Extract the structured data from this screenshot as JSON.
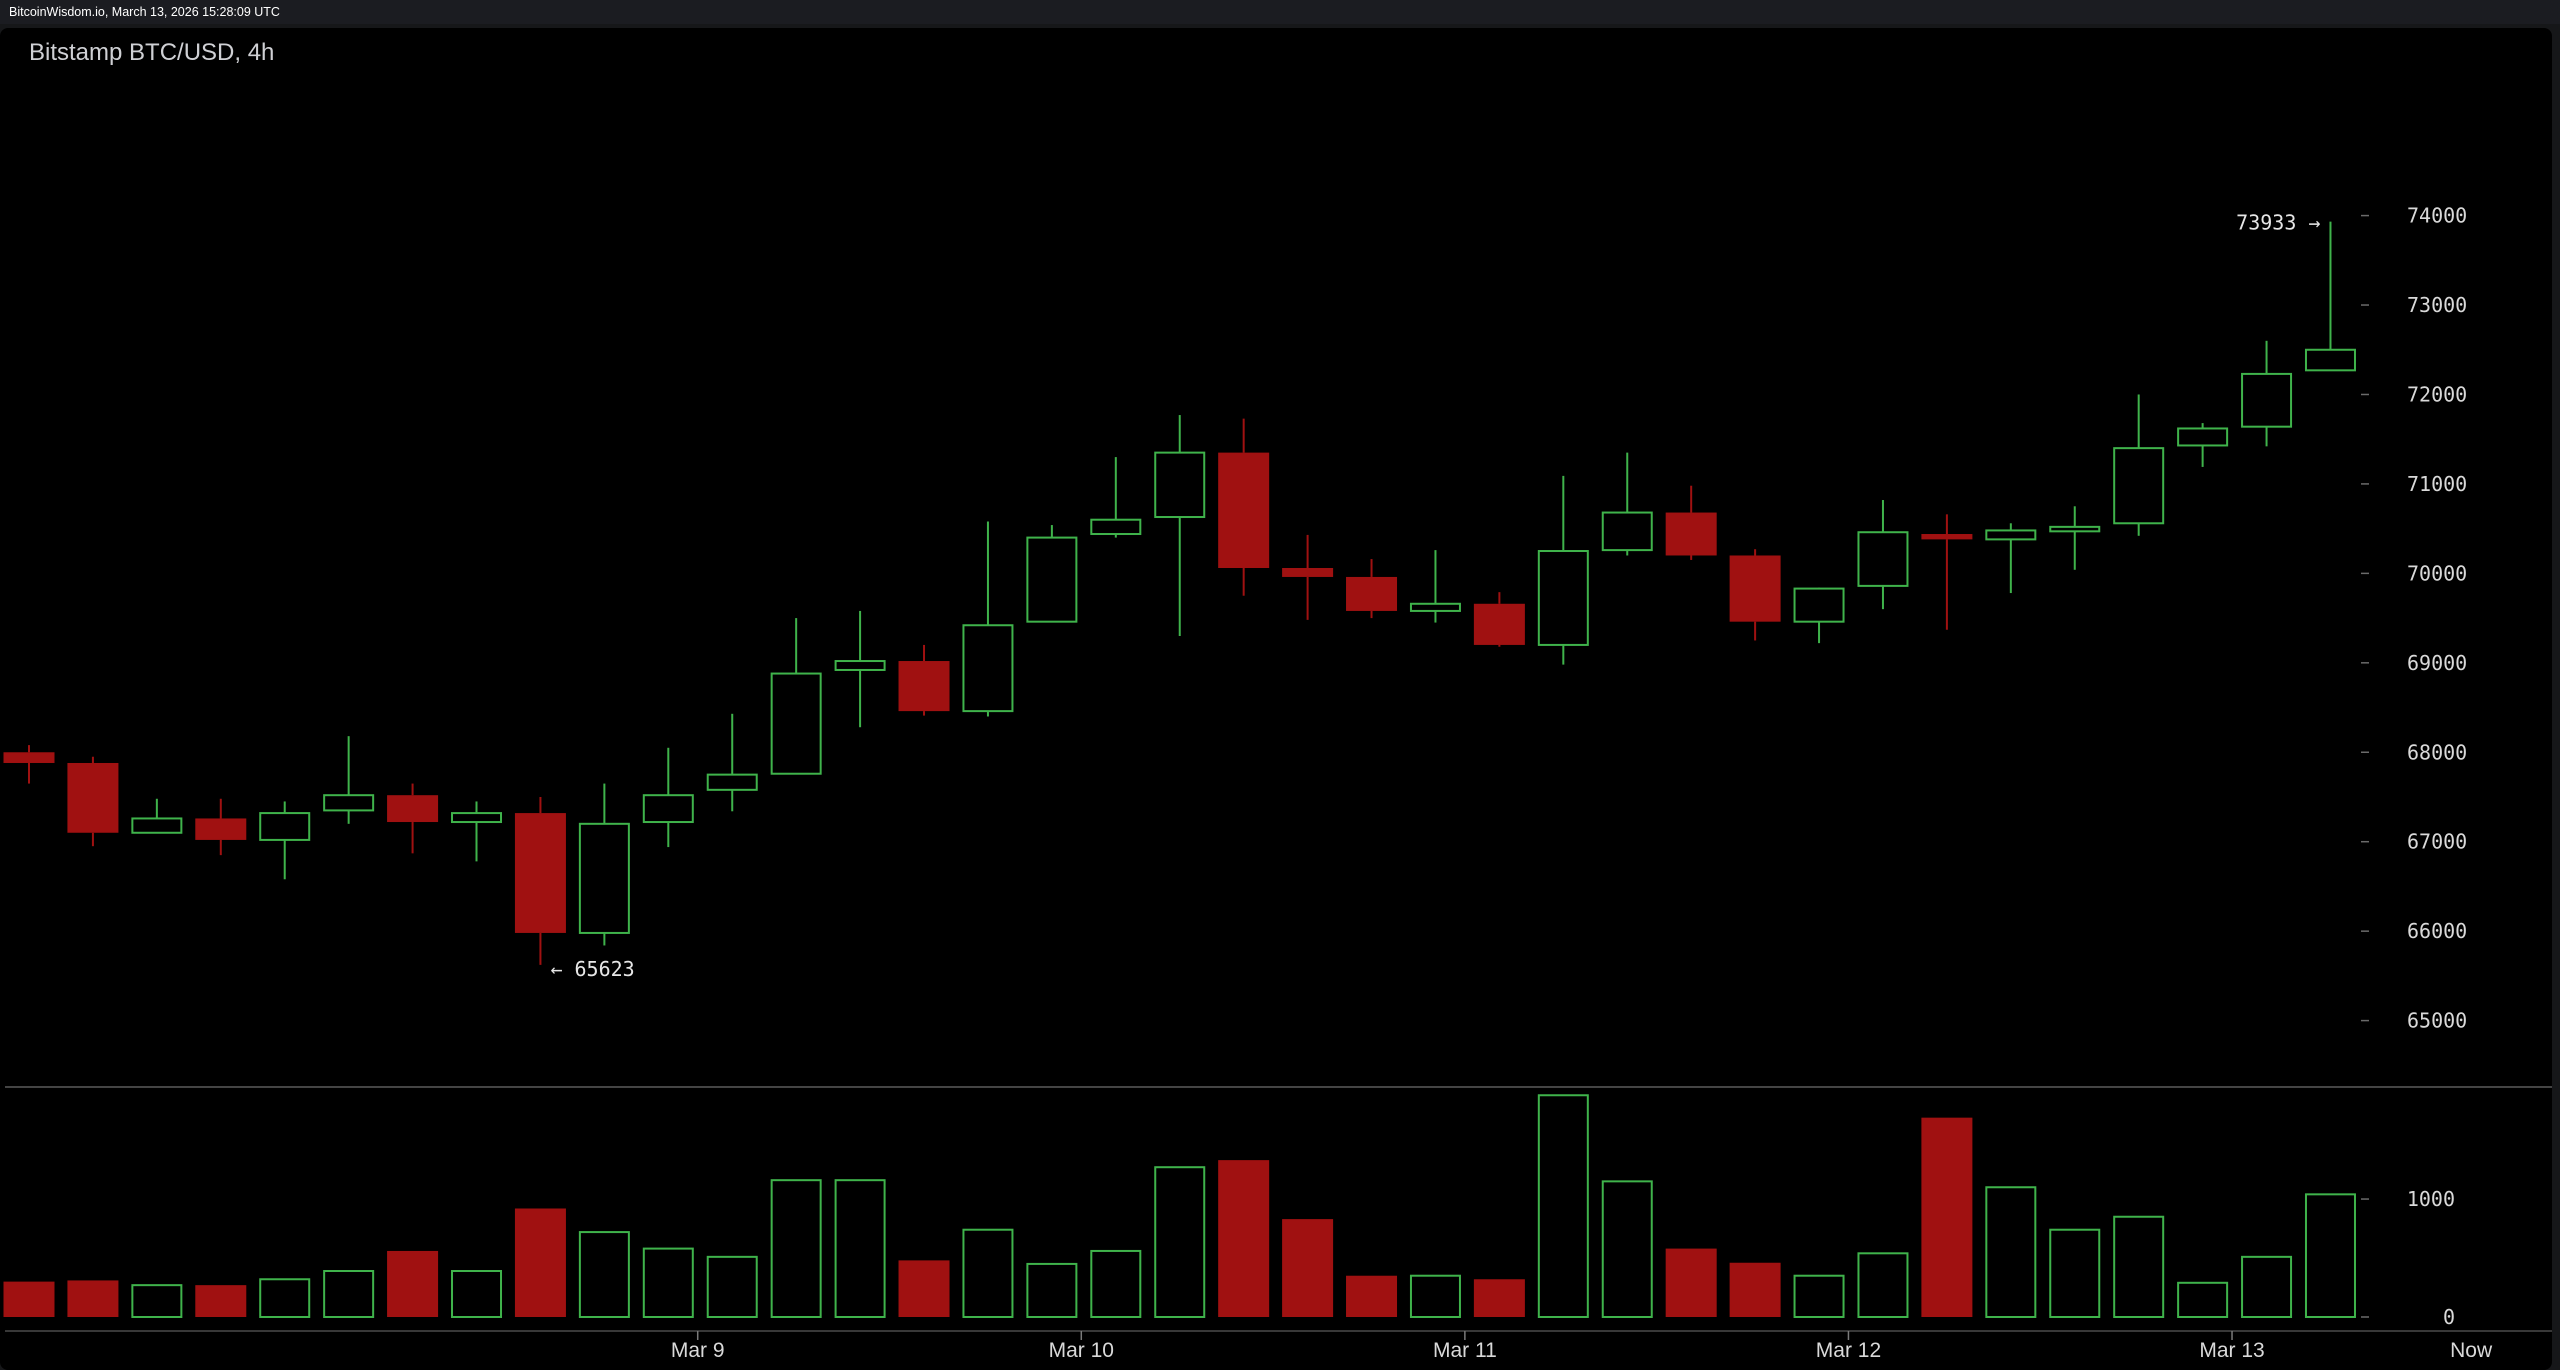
{
  "header": {
    "source_text": "BitcoinWisdom.io, March 13, 2026 15:28:09 UTC"
  },
  "chart_data": {
    "type": "candlestick",
    "title": "Bitstamp BTC/USD, 4h",
    "price_ticks": [
      74000,
      73000,
      72000,
      71000,
      70000,
      69000,
      68000,
      67000,
      66000,
      65000
    ],
    "price_ylim": [
      64280,
      75650
    ],
    "volume_ticks": [
      1000,
      0
    ],
    "volume_ylim": [
      0,
      1950
    ],
    "x_labels": [
      {
        "label": "Mar 9",
        "index": 10.46
      },
      {
        "label": "Mar 10",
        "index": 16.46
      },
      {
        "label": "Mar 11",
        "index": 22.46
      },
      {
        "label": "Mar 12",
        "index": 28.46
      },
      {
        "label": "Mar 13",
        "index": 34.46
      },
      {
        "label": "Now",
        "index": 38.2
      }
    ],
    "colors": {
      "up": "#3fb34b",
      "down": "#a01111",
      "background": "#000000"
    },
    "annotations": [
      {
        "text": "73933 →",
        "candle": 36,
        "price": 73933
      },
      {
        "text": "← 65623",
        "candle": 8,
        "price": 65623
      }
    ],
    "candles": [
      {
        "o": 68000,
        "h": 68080,
        "l": 67650,
        "c": 67880,
        "v": 300
      },
      {
        "o": 67880,
        "h": 67950,
        "l": 66950,
        "c": 67100,
        "v": 310
      },
      {
        "o": 67100,
        "h": 67480,
        "l": 67100,
        "c": 67260,
        "v": 270
      },
      {
        "o": 67260,
        "h": 67480,
        "l": 66850,
        "c": 67020,
        "v": 270
      },
      {
        "o": 67020,
        "h": 67450,
        "l": 66580,
        "c": 67320,
        "v": 320
      },
      {
        "o": 67350,
        "h": 68180,
        "l": 67200,
        "c": 67520,
        "v": 390
      },
      {
        "o": 67520,
        "h": 67650,
        "l": 66870,
        "c": 67220,
        "v": 560
      },
      {
        "o": 67220,
        "h": 67450,
        "l": 66780,
        "c": 67320,
        "v": 390
      },
      {
        "o": 67320,
        "h": 67500,
        "l": 65623,
        "c": 65980,
        "v": 920
      },
      {
        "o": 65980,
        "h": 67650,
        "l": 65840,
        "c": 67200,
        "v": 720
      },
      {
        "o": 67220,
        "h": 68050,
        "l": 66940,
        "c": 67520,
        "v": 580
      },
      {
        "o": 67580,
        "h": 68430,
        "l": 67340,
        "c": 67750,
        "v": 510
      },
      {
        "o": 67760,
        "h": 69500,
        "l": 67760,
        "c": 68880,
        "v": 1160
      },
      {
        "o": 68920,
        "h": 69580,
        "l": 68280,
        "c": 69020,
        "v": 1160
      },
      {
        "o": 69020,
        "h": 69200,
        "l": 68410,
        "c": 68460,
        "v": 480
      },
      {
        "o": 68460,
        "h": 70580,
        "l": 68400,
        "c": 69420,
        "v": 740
      },
      {
        "o": 69460,
        "h": 70540,
        "l": 69460,
        "c": 70400,
        "v": 450
      },
      {
        "o": 70440,
        "h": 71300,
        "l": 70400,
        "c": 70600,
        "v": 560
      },
      {
        "o": 70630,
        "h": 71770,
        "l": 69300,
        "c": 71350,
        "v": 1270
      },
      {
        "o": 71350,
        "h": 71730,
        "l": 69750,
        "c": 70060,
        "v": 1330
      },
      {
        "o": 70060,
        "h": 70430,
        "l": 69480,
        "c": 69960,
        "v": 830
      },
      {
        "o": 69960,
        "h": 70160,
        "l": 69500,
        "c": 69580,
        "v": 350
      },
      {
        "o": 69580,
        "h": 70260,
        "l": 69450,
        "c": 69660,
        "v": 350
      },
      {
        "o": 69660,
        "h": 69790,
        "l": 69180,
        "c": 69200,
        "v": 320
      },
      {
        "o": 69200,
        "h": 71090,
        "l": 68980,
        "c": 70250,
        "v": 1880
      },
      {
        "o": 70260,
        "h": 71350,
        "l": 70200,
        "c": 70680,
        "v": 1150
      },
      {
        "o": 70680,
        "h": 70980,
        "l": 70150,
        "c": 70200,
        "v": 580
      },
      {
        "o": 70200,
        "h": 70270,
        "l": 69250,
        "c": 69460,
        "v": 460
      },
      {
        "o": 69460,
        "h": 69840,
        "l": 69220,
        "c": 69830,
        "v": 350
      },
      {
        "o": 69860,
        "h": 70820,
        "l": 69600,
        "c": 70460,
        "v": 540
      },
      {
        "o": 70440,
        "h": 70660,
        "l": 69370,
        "c": 70380,
        "v": 1690
      },
      {
        "o": 70380,
        "h": 70560,
        "l": 69780,
        "c": 70480,
        "v": 1100
      },
      {
        "o": 70470,
        "h": 70750,
        "l": 70040,
        "c": 70520,
        "v": 740
      },
      {
        "o": 70560,
        "h": 72000,
        "l": 70420,
        "c": 71400,
        "v": 850
      },
      {
        "o": 71430,
        "h": 71680,
        "l": 71190,
        "c": 71620,
        "v": 290
      },
      {
        "o": 71640,
        "h": 72600,
        "l": 71420,
        "c": 72230,
        "v": 510
      },
      {
        "o": 72270,
        "h": 73933,
        "l": 72270,
        "c": 72500,
        "v": 1040
      }
    ]
  }
}
